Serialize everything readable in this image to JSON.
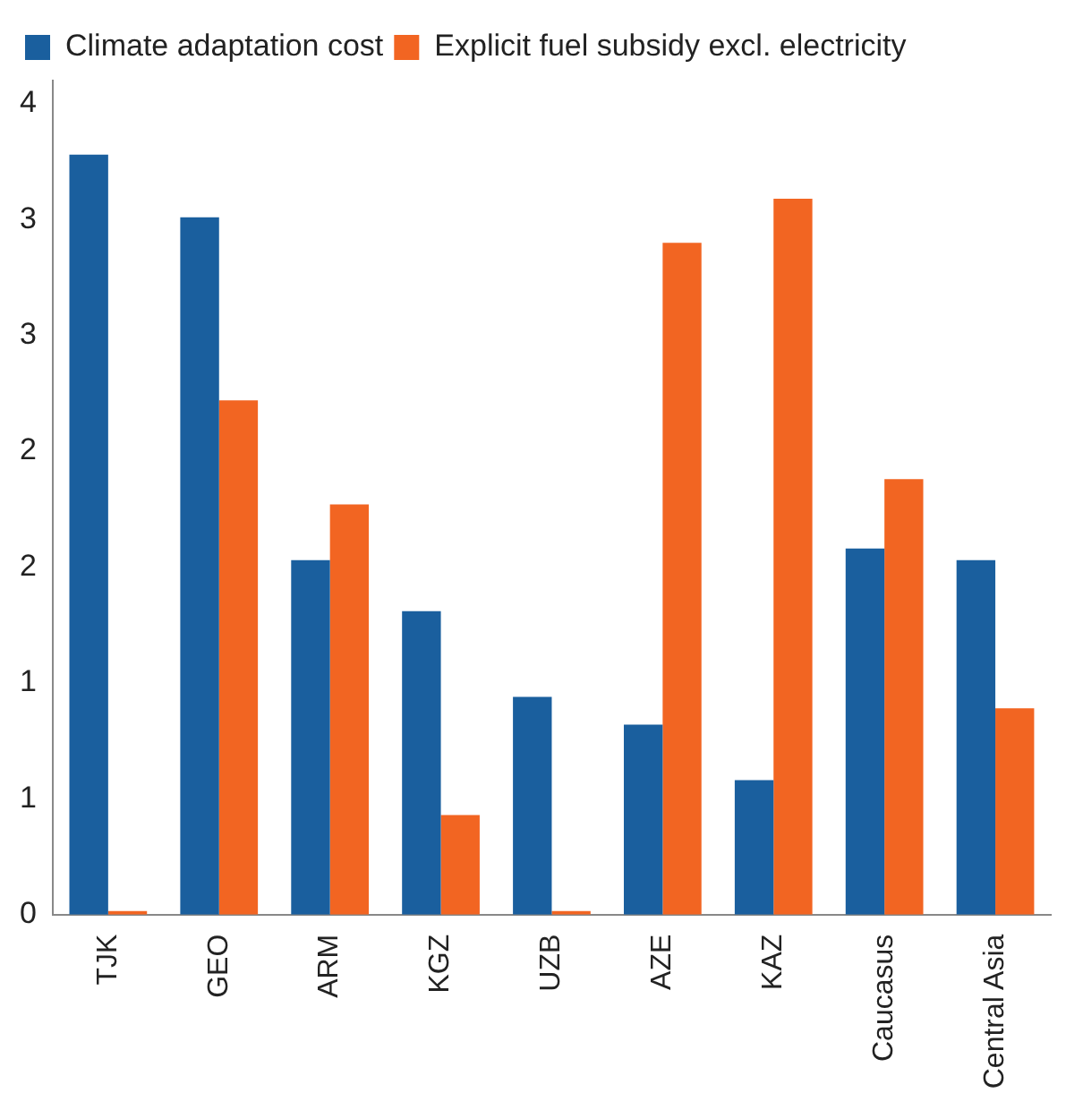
{
  "chart_data": {
    "type": "bar",
    "categories": [
      "TJK",
      "GEO",
      "ARM",
      "KGZ",
      "UZB",
      "AZE",
      "KAZ",
      "Caucasus",
      "Central Asia"
    ],
    "series": [
      {
        "name": "Climate adaptation cost",
        "color": "#1a5f9e",
        "values": [
          3.28,
          3.01,
          1.53,
          1.31,
          0.94,
          0.82,
          0.58,
          1.58,
          1.53
        ]
      },
      {
        "name": "Explicit fuel subsidy excl. electricity",
        "color": "#f26522",
        "values": [
          0.015,
          2.22,
          1.77,
          0.43,
          0.015,
          2.9,
          3.09,
          1.88,
          0.89
        ]
      }
    ],
    "ylim": [
      0,
      3.6
    ],
    "yticks": [
      {
        "value": 0,
        "label": "0"
      },
      {
        "value": 0.5,
        "label": "1"
      },
      {
        "value": 1,
        "label": "1"
      },
      {
        "value": 1.5,
        "label": "2"
      },
      {
        "value": 2,
        "label": "2"
      },
      {
        "value": 2.5,
        "label": "3"
      },
      {
        "value": 3,
        "label": "3"
      },
      {
        "value": 3.5,
        "label": "4"
      }
    ],
    "grid": false,
    "legend": "top left"
  }
}
